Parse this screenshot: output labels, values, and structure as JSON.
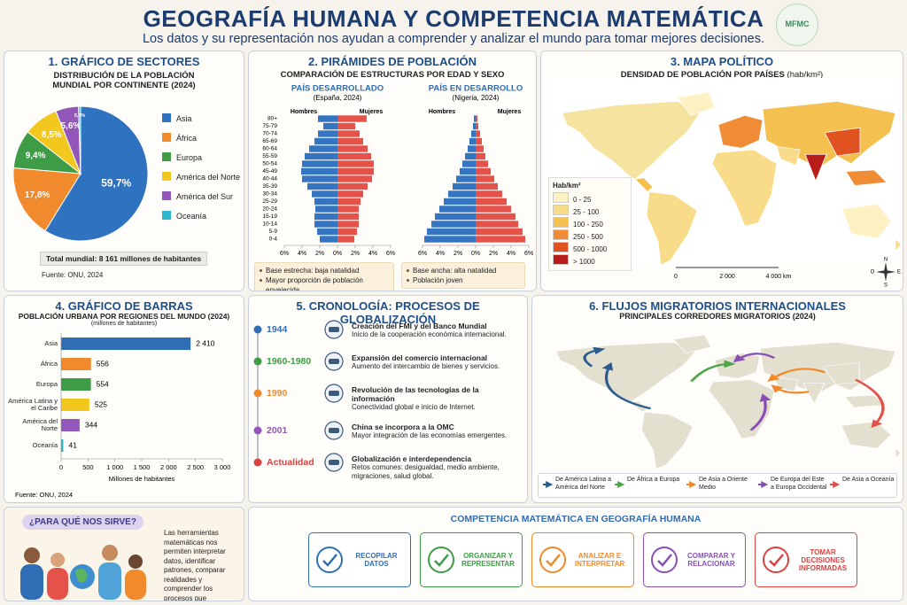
{
  "header": {
    "title": "GEOGRAFÍA HUMANA Y COMPETENCIA MATEMÁTICA",
    "subtitle": "Los datos y su representación nos ayudan a comprender y analizar el mundo para tomar mejores decisiones.",
    "logo": "MFMC"
  },
  "chart_data": [
    {
      "type": "pie",
      "panel": "1. GRÁFICO DE SECTORES",
      "title": "DISTRIBUCIÓN DE LA POBLACIÓN MUNDIAL POR CONTINENTE (2024)",
      "categories": [
        "Asia",
        "África",
        "Europa",
        "América del Norte",
        "América del Sur",
        "Oceanía"
      ],
      "values": [
        59.7,
        17.8,
        9.4,
        8.5,
        5.6,
        0.5
      ],
      "value_labels": [
        "59,7%",
        "17,8%",
        "9,4%",
        "8,5%",
        "5,6%",
        "0,5%"
      ],
      "colors": [
        "#2f73c0",
        "#f08a2c",
        "#3d9c45",
        "#f2c81e",
        "#9257b8",
        "#2db8cf"
      ],
      "note": "Total mundial: 8 161 millones de habitantes",
      "source": "Fuente: ONU, 2024"
    },
    {
      "type": "pyramid",
      "panel": "2. PIRÁMIDES DE POBLACIÓN",
      "title": "COMPARACIÓN DE ESTRUCTURAS POR EDAD Y SEXO",
      "categories": [
        "0-4",
        "5-9",
        "10-14",
        "15-19",
        "20-24",
        "25-29",
        "30-34",
        "35-39",
        "40-44",
        "45-49",
        "50-54",
        "55-59",
        "60-64",
        "65-69",
        "70-74",
        "75-79",
        "80+"
      ],
      "xlim": [
        -6,
        6
      ],
      "xticks": [
        {
          "value": -6,
          "label": "6%"
        },
        {
          "value": -4,
          "label": "4%"
        },
        {
          "value": -2,
          "label": "2%"
        },
        {
          "value": 0,
          "label": "0%"
        },
        {
          "value": 2,
          "label": "2%"
        },
        {
          "value": 4,
          "label": "4%"
        },
        {
          "value": 6,
          "label": "6%"
        }
      ],
      "pyramids": [
        {
          "title": "PAÍS DESARROLLADO",
          "subtitle": "(España, 2024)",
          "series": [
            {
              "name": "Hombres",
              "color": "#3474c0",
              "values": [
                2.0,
                2.3,
                2.6,
                2.6,
                2.5,
                2.6,
                2.9,
                3.4,
                4.0,
                4.1,
                4.0,
                3.7,
                3.2,
                2.6,
                2.2,
                1.6,
                2.2
              ]
            },
            {
              "name": "Mujeres",
              "color": "#e5524a",
              "values": [
                1.9,
                2.2,
                2.4,
                2.4,
                2.4,
                2.6,
                2.9,
                3.4,
                3.9,
                4.1,
                4.1,
                3.8,
                3.4,
                2.9,
                2.5,
                2.0,
                3.3
              ]
            }
          ],
          "notes": [
            "Base estrecha: baja natalidad",
            "Mayor proporción de población envejecida"
          ]
        },
        {
          "title": "PAÍS EN DESARROLLO",
          "subtitle": "(Nigeria, 2024)",
          "series": [
            {
              "name": "Hombres",
              "color": "#3474c0",
              "values": [
                5.8,
                5.5,
                5.0,
                4.6,
                4.1,
                3.6,
                3.1,
                2.6,
                2.2,
                1.8,
                1.5,
                1.2,
                0.9,
                0.7,
                0.5,
                0.3,
                0.2
              ]
            },
            {
              "name": "Mujeres",
              "color": "#e5524a",
              "values": [
                5.6,
                5.3,
                4.8,
                4.5,
                4.0,
                3.5,
                3.0,
                2.5,
                2.1,
                1.7,
                1.4,
                1.1,
                0.9,
                0.7,
                0.5,
                0.3,
                0.2
              ]
            }
          ],
          "notes": [
            "Base ancha: alta natalidad",
            "Población joven"
          ]
        }
      ]
    },
    {
      "type": "bar",
      "panel": "4. GRÁFICO DE BARRAS",
      "title": "POBLACIÓN URBANA POR REGIONES DEL MUNDO (2024)",
      "subtitle": "(millones de habitantes)",
      "categories": [
        "Asia",
        "África",
        "Europa",
        "América Latina y el Caribe",
        "América del Norte",
        "Oceanía"
      ],
      "values": [
        2410,
        556,
        554,
        525,
        344,
        41
      ],
      "value_labels": [
        "2 410",
        "556",
        "554",
        "525",
        "344",
        "41"
      ],
      "colors": [
        "#2f6db5",
        "#f08a2c",
        "#3d9c45",
        "#f2c81e",
        "#9257b8",
        "#2db8cf"
      ],
      "xlim": [
        0,
        3000
      ],
      "xticks": [
        0,
        500,
        {
          "value": 1000,
          "label": "1 000"
        },
        {
          "value": 1500,
          "label": "1 500"
        },
        {
          "value": 2000,
          "label": "2 000"
        },
        {
          "value": 2500,
          "label": "2 500"
        },
        {
          "value": 3000,
          "label": "3 000"
        }
      ],
      "xlabel": "Millones de habitantes",
      "source": "Fuente: ONU, 2024"
    }
  ],
  "map": {
    "panel": "3. MAPA POLÍTICO",
    "title": "DENSIDAD DE POBLACIÓN POR PAÍSES",
    "unit": "(hab/km²)",
    "legend_title": "Hab/km²",
    "legend": [
      {
        "label": "0 - 25",
        "color": "#fdf1c4"
      },
      {
        "label": "25 - 100",
        "color": "#f8dc8a"
      },
      {
        "label": "100 - 250",
        "color": "#f4c04f"
      },
      {
        "label": "250 - 500",
        "color": "#ef8c35"
      },
      {
        "label": "500 - 1000",
        "color": "#e0521f"
      },
      {
        "label": "> 1000",
        "color": "#b81d1a"
      }
    ],
    "scale": [
      "0",
      "2 000",
      "4 000 km"
    ],
    "compass": [
      "N",
      "S",
      "E",
      "O"
    ]
  },
  "timeline": {
    "panel": "5. CRONOLOGÍA: PROCESOS DE GLOBALIZACIÓN",
    "events": [
      {
        "year": "1944",
        "title": "Creación del FMI y del Banco Mundial",
        "text": "Inicio de la cooperación económica internacional.",
        "color": "#2f6db5"
      },
      {
        "year": "1960-1980",
        "title": "Expansión del comercio internacional",
        "text": "Aumento del intercambio de bienes y servicios.",
        "color": "#3d9c45"
      },
      {
        "year": "1990",
        "title": "Revolución de las tecnologías de la información",
        "text": "Conectividad global e inicio de Internet.",
        "color": "#f08a2c"
      },
      {
        "year": "2001",
        "title": "China se incorpora a la OMC",
        "text": "Mayor integración de las economías emergentes.",
        "color": "#9257b8"
      },
      {
        "year": "Actualidad",
        "title": "Globalización e interdependencia",
        "text": "Retos comunes: desigualdad, medio ambiente, migraciones, salud global.",
        "color": "#d9423f"
      }
    ]
  },
  "migration": {
    "panel": "6. FLUJOS MIGRATORIOS INTERNACIONALES",
    "title": "PRINCIPALES CORREDORES MIGRATORIOS (2024)",
    "corridors": [
      {
        "label": "De América Latina a América del Norte",
        "color": "#2a5d8f"
      },
      {
        "label": "De África a Europa",
        "color": "#4ea64a"
      },
      {
        "label": "De Asia a Oriente Medio",
        "color": "#f08a2c"
      },
      {
        "label": "De Europa del Este a Europa Occidental",
        "color": "#8a4fb5"
      },
      {
        "label": "De Asia a Oceanía",
        "color": "#e0524a"
      }
    ]
  },
  "footer": {
    "question": "¿PARA QUÉ NOS SIRVE?",
    "text": "Las herramientas matemáticas nos permiten interpretar datos, identificar patrones, comparar realidades y comprender los procesos que transforman nuestro mundo.",
    "title": "COMPETENCIA MATEMÁTICA EN GEOGRAFÍA HUMANA",
    "skills": [
      {
        "label": "RECOPILAR DATOS",
        "color": "#2f6db5"
      },
      {
        "label": "ORGANIZAR Y REPRESENTAR",
        "color": "#3d9c45"
      },
      {
        "label": "ANALIZAR E INTERPRETAR",
        "color": "#f08a2c"
      },
      {
        "label": "COMPARAR Y RELACIONAR",
        "color": "#8a4fb5"
      },
      {
        "label": "TOMAR DECISIONES INFORMADAS",
        "color": "#d9423f"
      }
    ]
  }
}
